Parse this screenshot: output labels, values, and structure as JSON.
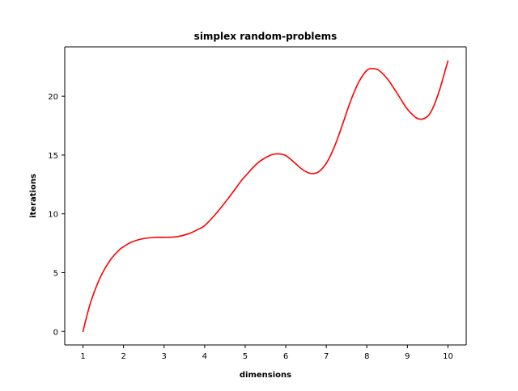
{
  "chart_data": {
    "type": "line",
    "title": "simplex random-problems",
    "xlabel": "dimensions",
    "ylabel": "iterations",
    "xlim": [
      0.55,
      10.45
    ],
    "ylim": [
      -1.15,
      24.2
    ],
    "xticks": [
      1,
      2,
      3,
      4,
      5,
      6,
      7,
      8,
      9,
      10
    ],
    "yticks": [
      0,
      5,
      10,
      15,
      20
    ],
    "grid": false,
    "legend": "none",
    "series": [
      {
        "color": "#ff0000",
        "x": [
          1,
          1.1,
          1.2,
          1.35,
          1.5,
          1.7,
          1.9,
          2.0,
          2.2,
          2.5,
          2.8,
          3.0,
          3.3,
          3.6,
          3.85,
          4.0,
          4.3,
          4.6,
          4.9,
          5.0,
          5.3,
          5.6,
          5.8,
          6.0,
          6.2,
          6.4,
          6.6,
          6.8,
          7.0,
          7.2,
          7.4,
          7.6,
          7.8,
          8.0,
          8.15,
          8.3,
          8.5,
          8.7,
          8.9,
          9.0,
          9.2,
          9.35,
          9.5,
          9.6,
          9.7,
          9.8,
          9.9,
          10.0
        ],
        "y": [
          0,
          1.4,
          2.6,
          4.0,
          5.1,
          6.2,
          6.95,
          7.2,
          7.6,
          7.9,
          8.0,
          8.0,
          8.05,
          8.3,
          8.7,
          9.0,
          10.1,
          11.4,
          12.8,
          13.2,
          14.3,
          14.95,
          15.1,
          14.95,
          14.4,
          13.8,
          13.45,
          13.55,
          14.3,
          15.7,
          17.6,
          19.6,
          21.2,
          22.2,
          22.35,
          22.2,
          21.5,
          20.5,
          19.4,
          18.9,
          18.2,
          18.05,
          18.3,
          18.8,
          19.6,
          20.6,
          21.8,
          23.0
        ]
      }
    ]
  }
}
